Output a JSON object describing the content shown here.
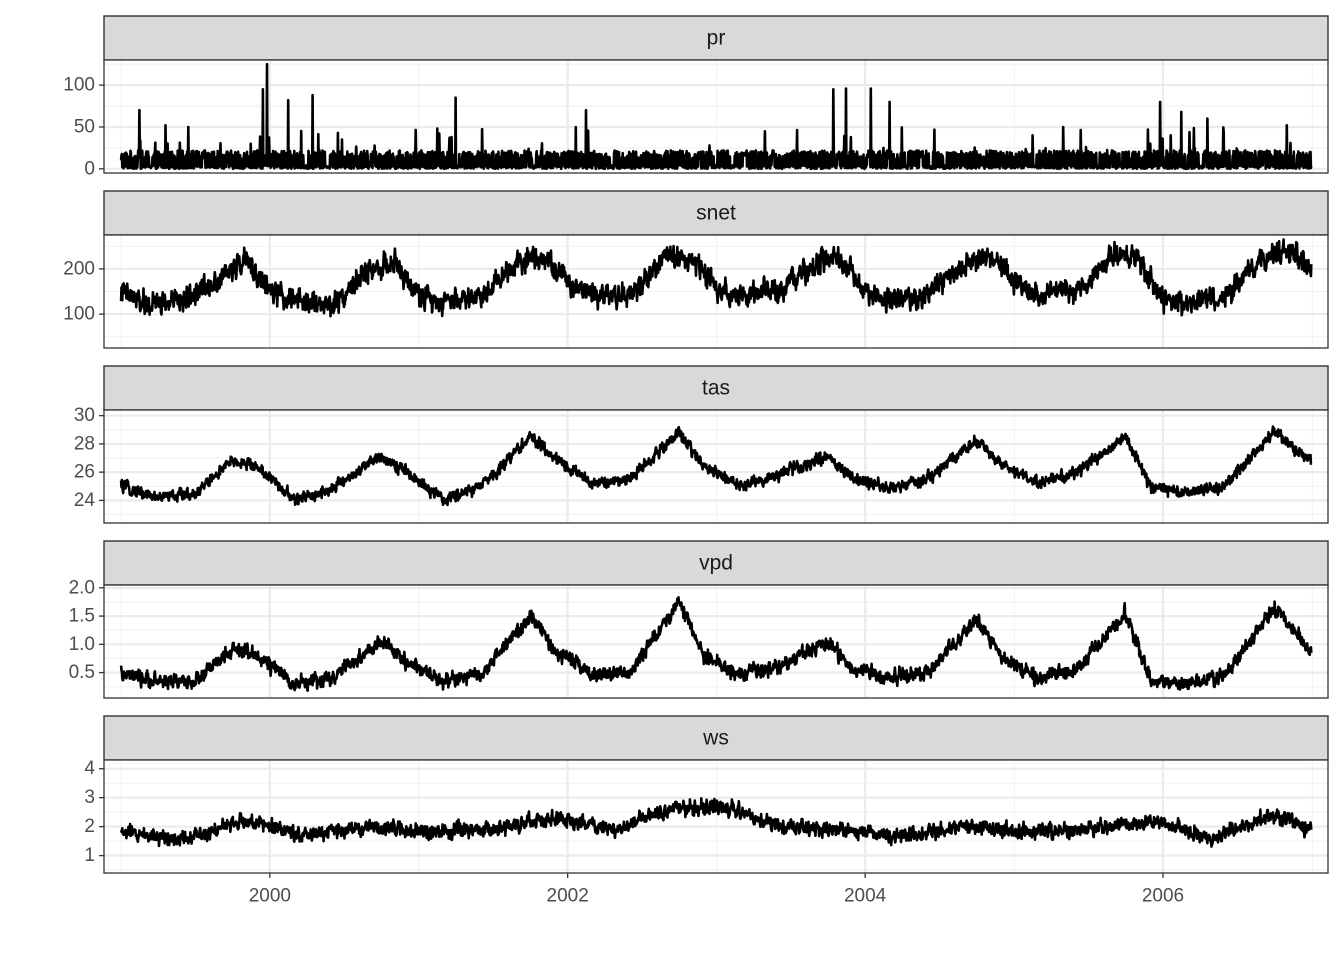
{
  "chart_data": {
    "type": "line",
    "layout": "faceted",
    "x_axis": {
      "type": "date",
      "range": [
        "1998-11-20",
        "2007-02-10"
      ],
      "ticks": [
        {
          "value": "2000-01-01",
          "label": "2000"
        },
        {
          "value": "2002-01-01",
          "label": "2002"
        },
        {
          "value": "2004-01-01",
          "label": "2004"
        },
        {
          "value": "2006-01-01",
          "label": "2006"
        }
      ]
    },
    "grid": true,
    "line_color": "#000000",
    "panels": [
      {
        "name": "pr",
        "ylim": [
          -5,
          130
        ],
        "yticks": [
          0,
          50,
          100
        ],
        "ytick_labels": [
          "0",
          "50",
          "100"
        ],
        "series": {
          "x": [
            "1999-01-01",
            "1999-02-15",
            "1999-03-10",
            "1999-04-20",
            "1999-05-01",
            "1999-06-15",
            "1999-09-01",
            "1999-11-15",
            "1999-12-15",
            "1999-12-25",
            "2000-01-10",
            "2000-02-15",
            "2000-03-15",
            "2000-04-15",
            "2000-06-01",
            "2000-09-01",
            "2000-12-01",
            "2001-02-15",
            "2001-03-15",
            "2001-04-01",
            "2001-04-20",
            "2001-07-01",
            "2001-10-01",
            "2001-12-01",
            "2002-01-15",
            "2002-02-15",
            "2002-04-01",
            "2002-07-01",
            "2002-10-01",
            "2002-12-15",
            "2003-03-01",
            "2003-05-15",
            "2003-08-01",
            "2003-10-15",
            "2003-10-25",
            "2003-11-15",
            "2003-12-15",
            "2004-01-15",
            "2004-02-15",
            "2004-03-01",
            "2004-04-01",
            "2004-06-01",
            "2004-09-01",
            "2004-12-01",
            "2005-02-15",
            "2005-04-01",
            "2005-05-01",
            "2005-05-25",
            "2005-07-01",
            "2005-09-01",
            "2005-12-01",
            "2005-12-25",
            "2006-01-20",
            "2006-02-15",
            "2006-03-20",
            "2006-04-20",
            "2006-05-20",
            "2006-06-20",
            "2006-09-01",
            "2006-11-01",
            "2006-11-15",
            "2006-12-31"
          ],
          "y": [
            10,
            70,
            15,
            52,
            20,
            50,
            10,
            30,
            95,
            125,
            12,
            82,
            20,
            88,
            15,
            8,
            5,
            48,
            15,
            85,
            20,
            12,
            8,
            5,
            10,
            70,
            15,
            5,
            8,
            28,
            15,
            10,
            8,
            95,
            12,
            96,
            12,
            96,
            25,
            80,
            15,
            5,
            8,
            10,
            40,
            20,
            50,
            15,
            8,
            10,
            30,
            80,
            40,
            68,
            25,
            60,
            15,
            5,
            10,
            52,
            15,
            3
          ]
        }
      },
      {
        "name": "snet",
        "ylim": [
          25,
          275
        ],
        "yticks": [
          100,
          200
        ],
        "ytick_labels": [
          "100",
          "200"
        ],
        "series": {
          "x": [
            "1999-01-01",
            "1999-03-01",
            "1999-06-01",
            "1999-09-01",
            "1999-11-01",
            "2000-01-01",
            "2000-03-01",
            "2000-06-01",
            "2000-09-01",
            "2000-11-01",
            "2001-01-01",
            "2001-03-01",
            "2001-06-01",
            "2001-09-01",
            "2001-11-01",
            "2002-01-01",
            "2002-03-01",
            "2002-06-01",
            "2002-09-01",
            "2002-11-01",
            "2003-01-01",
            "2003-03-01",
            "2003-06-01",
            "2003-09-01",
            "2003-11-01",
            "2004-01-01",
            "2004-03-01",
            "2004-06-01",
            "2004-09-01",
            "2004-11-01",
            "2005-01-01",
            "2005-03-01",
            "2005-06-01",
            "2005-09-01",
            "2005-11-01",
            "2006-01-01",
            "2006-03-01",
            "2006-06-01",
            "2006-09-01",
            "2006-11-01",
            "2006-12-31"
          ],
          "y": [
            150,
            120,
            130,
            180,
            220,
            150,
            130,
            120,
            200,
            210,
            140,
            130,
            140,
            220,
            230,
            170,
            150,
            140,
            230,
            220,
            160,
            140,
            150,
            210,
            220,
            150,
            130,
            140,
            210,
            230,
            170,
            140,
            150,
            230,
            220,
            130,
            120,
            140,
            220,
            240,
            200
          ]
        }
      },
      {
        "name": "tas",
        "ylim": [
          22.4,
          30.4
        ],
        "yticks": [
          24,
          26,
          28,
          30
        ],
        "ytick_labels": [
          "24",
          "26",
          "28",
          "30"
        ],
        "series": {
          "x": [
            "1999-01-01",
            "1999-04-01",
            "1999-07-01",
            "1999-10-01",
            "1999-12-01",
            "2000-03-01",
            "2000-06-01",
            "2000-10-01",
            "2000-12-01",
            "2001-03-01",
            "2001-06-01",
            "2001-10-01",
            "2001-12-01",
            "2002-03-01",
            "2002-06-01",
            "2002-10-01",
            "2002-12-01",
            "2003-03-01",
            "2003-06-01",
            "2003-10-01",
            "2003-12-01",
            "2004-03-01",
            "2004-06-01",
            "2004-10-01",
            "2004-12-01",
            "2005-03-01",
            "2005-06-01",
            "2005-10-01",
            "2005-12-01",
            "2006-03-01",
            "2006-06-01",
            "2006-10-01",
            "2006-12-31"
          ],
          "y": [
            25.0,
            24.2,
            24.5,
            26.8,
            26.4,
            24.0,
            24.8,
            27.2,
            26.0,
            24.0,
            25.0,
            28.5,
            27.0,
            25.2,
            25.5,
            28.8,
            26.5,
            25.0,
            25.8,
            27.2,
            25.5,
            24.8,
            25.5,
            28.2,
            26.5,
            25.2,
            26.0,
            28.5,
            25.0,
            24.5,
            25.0,
            28.8,
            26.8
          ]
        }
      },
      {
        "name": "vpd",
        "ylim": [
          0.05,
          2.05
        ],
        "yticks": [
          0.5,
          1.0,
          1.5,
          2.0
        ],
        "ytick_labels": [
          "0.5",
          "1.0",
          "1.5",
          "2.0"
        ],
        "series": {
          "x": [
            "1999-01-01",
            "1999-04-01",
            "1999-07-01",
            "1999-10-01",
            "1999-12-01",
            "2000-03-01",
            "2000-06-01",
            "2000-10-01",
            "2000-12-01",
            "2001-03-01",
            "2001-06-01",
            "2001-10-01",
            "2001-12-01",
            "2002-03-01",
            "2002-06-01",
            "2002-10-01",
            "2002-12-01",
            "2003-03-01",
            "2003-06-01",
            "2003-10-01",
            "2003-12-01",
            "2004-03-01",
            "2004-06-01",
            "2004-10-01",
            "2004-12-01",
            "2005-03-01",
            "2005-06-01",
            "2005-10-01",
            "2005-12-01",
            "2006-03-01",
            "2006-06-01",
            "2006-10-01",
            "2006-12-31"
          ],
          "y": [
            0.45,
            0.35,
            0.35,
            0.9,
            0.8,
            0.3,
            0.4,
            1.05,
            0.7,
            0.35,
            0.45,
            1.5,
            0.9,
            0.45,
            0.5,
            1.75,
            0.8,
            0.45,
            0.6,
            1.05,
            0.55,
            0.4,
            0.5,
            1.45,
            0.75,
            0.4,
            0.55,
            1.55,
            0.35,
            0.3,
            0.45,
            1.65,
            0.85
          ]
        }
      },
      {
        "name": "ws",
        "ylim": [
          0.4,
          4.3
        ],
        "yticks": [
          1,
          2,
          3,
          4
        ],
        "ytick_labels": [
          "1",
          "2",
          "3",
          "4"
        ],
        "series": {
          "x": [
            "1999-01-01",
            "1999-06-01",
            "1999-11-01",
            "2000-04-01",
            "2000-09-01",
            "2001-02-01",
            "2001-07-01",
            "2001-12-01",
            "2002-05-01",
            "2002-09-01",
            "2003-01-15",
            "2003-06-01",
            "2003-11-01",
            "2004-04-01",
            "2004-09-01",
            "2005-02-01",
            "2005-07-01",
            "2005-12-01",
            "2006-05-01",
            "2006-10-01",
            "2006-12-31"
          ],
          "y": [
            1.8,
            1.6,
            2.2,
            1.7,
            2.0,
            1.8,
            1.9,
            2.3,
            1.9,
            2.6,
            2.7,
            2.0,
            1.9,
            1.7,
            2.0,
            1.8,
            1.9,
            2.2,
            1.6,
            2.4,
            1.9
          ]
        }
      }
    ]
  }
}
